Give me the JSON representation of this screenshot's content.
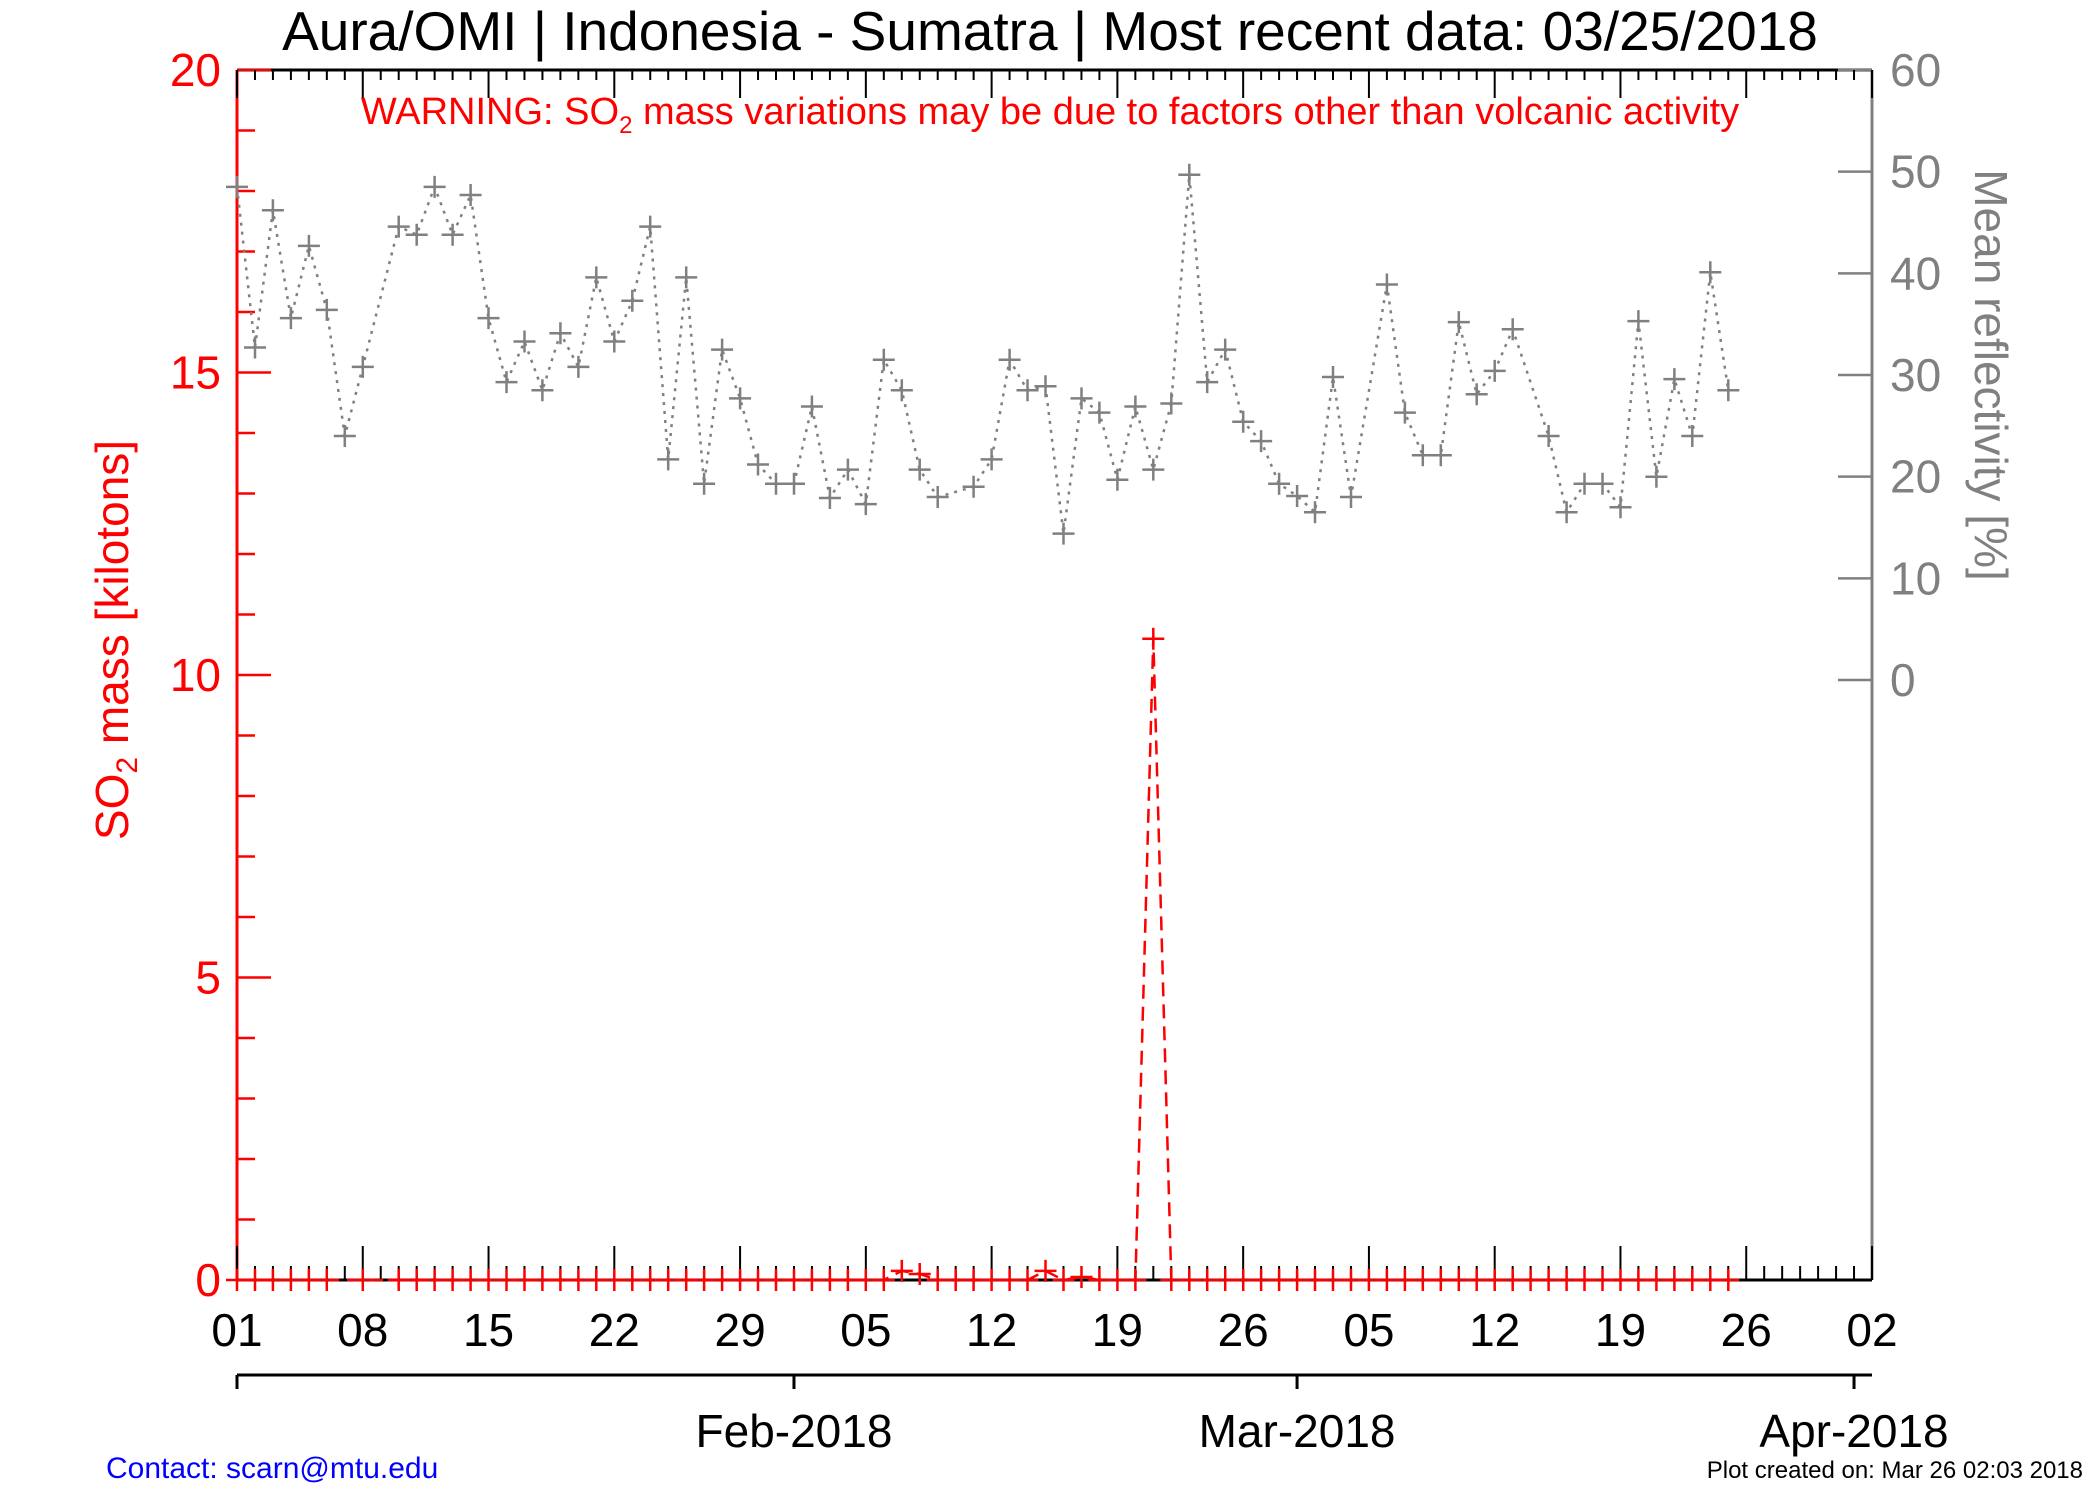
{
  "title": "Aura/OMI | Indonesia - Sumatra | Most recent data: 03/25/2018",
  "warning": {
    "prefix": "WARNING: SO",
    "subscript": "2",
    "suffix": " mass variations may be due to factors other than volcanic activity"
  },
  "left_axis_label": {
    "prefix": "SO",
    "subscript": "2",
    "suffix": " mass [kilotons]"
  },
  "right_axis_label": "Mean reflectivity [%]",
  "contact": "Contact: scarn@mtu.edu",
  "created": "Plot created on: Mar 26 02:03 2018",
  "colors": {
    "so2": "#ff0000",
    "reflectivity": "#808080",
    "axis": "#000000",
    "contact": "#0000ff"
  },
  "chart_data": {
    "type": "line",
    "x_axis": {
      "range": [
        "2018-01-01",
        "2018-04-02"
      ],
      "tick_labels": [
        "01",
        "08",
        "15",
        "22",
        "29",
        "05",
        "12",
        "19",
        "26",
        "05",
        "12",
        "19",
        "26",
        "02"
      ],
      "month_labels": [
        "Feb-2018",
        "Mar-2018",
        "Apr-2018"
      ]
    },
    "y_left": {
      "label": "SO2 mass [kilotons]",
      "range": [
        0,
        20
      ],
      "ticks": [
        0,
        5,
        10,
        15,
        20
      ]
    },
    "y_right": {
      "label": "Mean reflectivity [%]",
      "range": [
        0,
        60
      ],
      "ticks": [
        0,
        10,
        20,
        30,
        40,
        50,
        60
      ]
    },
    "series": [
      {
        "axis": "left",
        "style": "dashed",
        "x": [
          "2018-01-01",
          "2018-01-02",
          "2018-01-03",
          "2018-01-04",
          "2018-01-05",
          "2018-01-06",
          "2018-01-08",
          "2018-01-10",
          "2018-01-11",
          "2018-01-12",
          "2018-01-13",
          "2018-01-14",
          "2018-01-15",
          "2018-01-16",
          "2018-01-17",
          "2018-01-18",
          "2018-01-19",
          "2018-01-20",
          "2018-01-21",
          "2018-01-22",
          "2018-01-23",
          "2018-01-24",
          "2018-01-25",
          "2018-01-26",
          "2018-01-27",
          "2018-01-28",
          "2018-01-29",
          "2018-01-30",
          "2018-01-31",
          "2018-02-01",
          "2018-02-02",
          "2018-02-03",
          "2018-02-04",
          "2018-02-05",
          "2018-02-06",
          "2018-02-07",
          "2018-02-08",
          "2018-02-09",
          "2018-02-10",
          "2018-02-11",
          "2018-02-12",
          "2018-02-13",
          "2018-02-14",
          "2018-02-15",
          "2018-02-16",
          "2018-02-17",
          "2018-02-18",
          "2018-02-19",
          "2018-02-20",
          "2018-02-21",
          "2018-02-22",
          "2018-02-23",
          "2018-02-24",
          "2018-02-25",
          "2018-02-26",
          "2018-02-27",
          "2018-02-28",
          "2018-03-01",
          "2018-03-02",
          "2018-03-03",
          "2018-03-04",
          "2018-03-05",
          "2018-03-06",
          "2018-03-07",
          "2018-03-08",
          "2018-03-09",
          "2018-03-10",
          "2018-03-11",
          "2018-03-12",
          "2018-03-13",
          "2018-03-14",
          "2018-03-15",
          "2018-03-16",
          "2018-03-17",
          "2018-03-18",
          "2018-03-19",
          "2018-03-20",
          "2018-03-21",
          "2018-03-22",
          "2018-03-23",
          "2018-03-24",
          "2018-03-25"
        ],
        "y": [
          0,
          0,
          0,
          0,
          0,
          0,
          0,
          0,
          0,
          0,
          0,
          0,
          0,
          0,
          0,
          0,
          0,
          0,
          0,
          0,
          0,
          0,
          0,
          0,
          0,
          0,
          0,
          0,
          0,
          0,
          0,
          0,
          0,
          0,
          0,
          0.15,
          0.1,
          0,
          0,
          0,
          0,
          0,
          0,
          0.15,
          0,
          0.05,
          0,
          0,
          0,
          10.6,
          0,
          0,
          0,
          0,
          0,
          0,
          0,
          0,
          0,
          0,
          0,
          0,
          0,
          0,
          0,
          0,
          0,
          0,
          0,
          0,
          0,
          0,
          0,
          0,
          0,
          0,
          0,
          0,
          0,
          0,
          0,
          0
        ]
      },
      {
        "axis": "right",
        "style": "dotted",
        "x": [
          "2018-01-01",
          "2018-01-02",
          "2018-01-03",
          "2018-01-04",
          "2018-01-05",
          "2018-01-06",
          "2018-01-07",
          "2018-01-08",
          "2018-01-10",
          "2018-01-11",
          "2018-01-12",
          "2018-01-13",
          "2018-01-14",
          "2018-01-15",
          "2018-01-16",
          "2018-01-17",
          "2018-01-18",
          "2018-01-19",
          "2018-01-20",
          "2018-01-21",
          "2018-01-22",
          "2018-01-23",
          "2018-01-24",
          "2018-01-25",
          "2018-01-26",
          "2018-01-27",
          "2018-01-28",
          "2018-01-29",
          "2018-01-30",
          "2018-01-31",
          "2018-02-01",
          "2018-02-02",
          "2018-02-03",
          "2018-02-04",
          "2018-02-05",
          "2018-02-06",
          "2018-02-07",
          "2018-02-08",
          "2018-02-09",
          "2018-02-11",
          "2018-02-12",
          "2018-02-13",
          "2018-02-14",
          "2018-02-15",
          "2018-02-16",
          "2018-02-17",
          "2018-02-18",
          "2018-02-19",
          "2018-02-20",
          "2018-02-21",
          "2018-02-22",
          "2018-02-23",
          "2018-02-24",
          "2018-02-25",
          "2018-02-26",
          "2018-02-27",
          "2018-02-28",
          "2018-03-01",
          "2018-03-02",
          "2018-03-03",
          "2018-03-04",
          "2018-03-06",
          "2018-03-07",
          "2018-03-08",
          "2018-03-09",
          "2018-03-10",
          "2018-03-11",
          "2018-03-12",
          "2018-03-13",
          "2018-03-15",
          "2018-03-16",
          "2018-03-17",
          "2018-03-18",
          "2018-03-19",
          "2018-03-20",
          "2018-03-21",
          "2018-03-22",
          "2018-03-23",
          "2018-03-24",
          "2018-03-25"
        ],
        "y": [
          48.5,
          32.7,
          46.2,
          35.6,
          42.7,
          36.4,
          24,
          30.8,
          44.6,
          43.8,
          48.5,
          43.8,
          47.7,
          35.6,
          29.3,
          33.3,
          28.5,
          34.1,
          30.8,
          39.6,
          33.3,
          37.3,
          44.6,
          21.7,
          39.6,
          19.3,
          32.5,
          27.7,
          21.2,
          19.3,
          19.3,
          26.9,
          17.9,
          20.7,
          17.3,
          31.5,
          28.5,
          20.7,
          18,
          19,
          21.7,
          31.5,
          28.5,
          28.9,
          14.4,
          27.7,
          26.3,
          19.7,
          26.9,
          20.7,
          27.2,
          49.7,
          29.3,
          32.5,
          25.4,
          23.5,
          19.3,
          18.1,
          16.5,
          29.8,
          18,
          38.9,
          26.3,
          22.1,
          22.1,
          35.2,
          28.1,
          30.4,
          34.5,
          24,
          16.5,
          19.3,
          19.3,
          17,
          35.3,
          20,
          29.6,
          24,
          40.1,
          28.5
        ]
      }
    ]
  }
}
